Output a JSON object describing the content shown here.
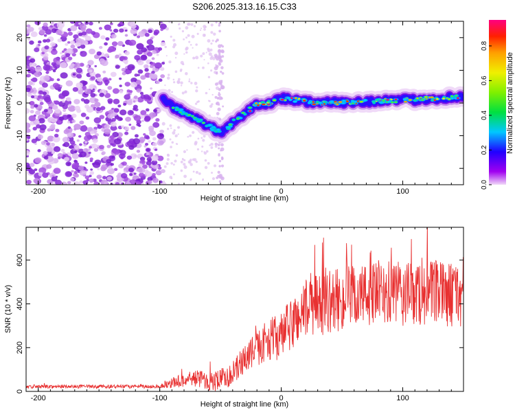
{
  "title": "S206.2025.313.16.15.C33",
  "chart_data": [
    {
      "type": "heatmap",
      "xlabel": "Height of straight line (km)",
      "ylabel": "Frequency (Hz)",
      "xlim": [
        -210,
        150
      ],
      "ylim": [
        -25,
        25
      ],
      "xticks": [
        -200,
        -100,
        0,
        100
      ],
      "xtick_labels": [
        "-200",
        "-100",
        "0",
        "100"
      ],
      "yticks": [
        -20,
        -10,
        0,
        10,
        20
      ],
      "ytick_labels": [
        "-20",
        "-10",
        "0",
        "10",
        "20"
      ],
      "colorbar": {
        "label": "Normalized spectral amplitude",
        "range": [
          0,
          0.95
        ],
        "ticks": [
          0.0,
          0.2,
          0.4,
          0.6,
          0.8
        ],
        "tick_labels": [
          "0.0",
          "0.2",
          "0.4",
          "0.6",
          "0.8"
        ],
        "colors": [
          "#f0d8f8",
          "#a000f0",
          "#2000ff",
          "#00c8ff",
          "#00e040",
          "#80f000",
          "#f0f000",
          "#ffa000",
          "#ff2000",
          "#ff0080"
        ]
      },
      "ridge": {
        "x": [
          -97,
          -90,
          -80,
          -70,
          -60,
          -50,
          -45,
          -40,
          -30,
          -20,
          -10,
          0,
          10,
          30,
          50,
          70,
          90,
          110,
          130,
          150
        ],
        "y": [
          1.5,
          -1,
          -3,
          -5,
          -7,
          -9,
          -8,
          -6,
          -3,
          -0.5,
          0,
          1.5,
          1,
          0,
          0.2,
          0.5,
          0.8,
          1,
          1.5,
          2
        ]
      },
      "noise_region_x": [
        -210,
        -97
      ]
    },
    {
      "type": "line",
      "xlabel": "Height of straight line (km)",
      "ylabel": "SNR (10 * v/v)",
      "xlim": [
        -210,
        150
      ],
      "ylim": [
        0,
        750
      ],
      "xticks": [
        -200,
        -100,
        0,
        100
      ],
      "xtick_labels": [
        "-200",
        "-100",
        "0",
        "100"
      ],
      "yticks": [
        0,
        200,
        400,
        600
      ],
      "ytick_labels": [
        "0",
        "200",
        "400",
        "600"
      ],
      "color": "#e83030",
      "trend": {
        "x": [
          -210,
          -100,
          -90,
          -70,
          -55,
          -40,
          -30,
          -10,
          0,
          20,
          40,
          60,
          80,
          100,
          120,
          150
        ],
        "y": [
          22,
          22,
          40,
          60,
          45,
          80,
          150,
          240,
          250,
          380,
          410,
          430,
          450,
          440,
          450,
          440
        ]
      },
      "spread": {
        "x": [
          -210,
          -100,
          -90,
          -60,
          -40,
          -20,
          0,
          20,
          60,
          100,
          150
        ],
        "y": [
          8,
          8,
          25,
          45,
          55,
          80,
          110,
          140,
          150,
          150,
          150
        ]
      }
    }
  ]
}
